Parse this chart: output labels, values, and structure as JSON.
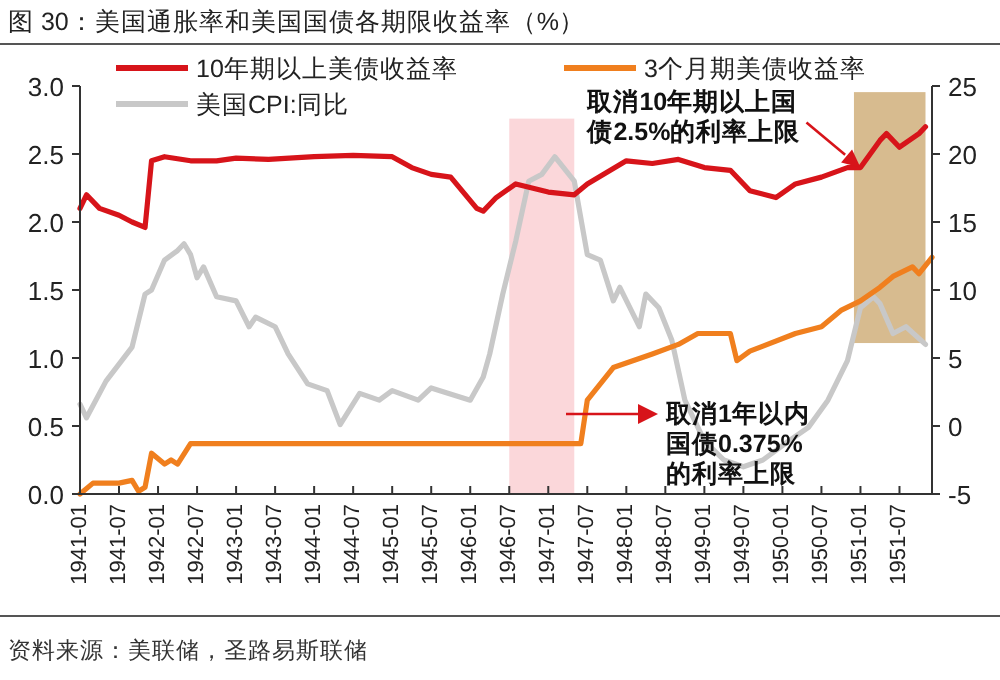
{
  "chart_data": {
    "type": "line",
    "title": "图 30：美国通胀率和美国国债各期限收益率（%）",
    "xlim": [
      "1941-01",
      "1951-12"
    ],
    "xticks": [
      "1941-01",
      "1941-07",
      "1942-01",
      "1942-07",
      "1943-01",
      "1943-07",
      "1944-01",
      "1944-07",
      "1945-01",
      "1945-07",
      "1946-01",
      "1946-07",
      "1947-01",
      "1947-07",
      "1948-01",
      "1948-07",
      "1949-01",
      "1949-07",
      "1950-01",
      "1950-07",
      "1951-01",
      "1951-07"
    ],
    "ylim": [
      0,
      3
    ],
    "yticks": [
      {
        "value": 0,
        "label": "0.0"
      },
      0.5,
      {
        "value": 1,
        "label": "1.0"
      },
      1.5,
      {
        "value": 2,
        "label": "2.0"
      },
      2.5,
      {
        "value": 3,
        "label": "3.0"
      }
    ],
    "y2lim": [
      -5,
      25
    ],
    "y2ticks": [
      -5,
      0,
      5,
      10,
      15,
      20,
      25
    ],
    "legend": "top",
    "grid": false,
    "series": [
      {
        "name": "美国CPI:同比",
        "color": "#c8c8c8",
        "axis": "y2",
        "x": [
          "1941-01",
          "1941-02",
          "1941-05",
          "1941-09",
          "1941-11",
          "1941-12",
          "1942-02",
          "1942-04",
          "1942-05",
          "1942-06",
          "1942-07",
          "1942-08",
          "1942-10",
          "1943-01",
          "1943-03",
          "1943-04",
          "1943-07",
          "1943-09",
          "1943-12",
          "1944-03",
          "1944-05",
          "1944-08",
          "1944-11",
          "1945-01",
          "1945-05",
          "1945-07",
          "1946-01",
          "1946-03",
          "1946-04",
          "1946-06",
          "1946-08",
          "1946-10",
          "1946-12",
          "1947-02",
          "1947-05",
          "1947-07",
          "1947-09",
          "1947-11",
          "1947-12",
          "1948-03",
          "1948-04",
          "1948-06",
          "1948-08",
          "1948-10",
          "1949-01",
          "1949-04",
          "1949-07",
          "1949-10",
          "1950-02",
          "1950-05",
          "1950-08",
          "1950-11",
          "1951-01",
          "1951-03",
          "1951-04",
          "1951-06",
          "1951-08",
          "1951-11"
        ],
        "values": [
          1.6,
          0.6,
          3.3,
          5.8,
          9.7,
          10.0,
          12.2,
          12.9,
          13.4,
          12.6,
          10.9,
          11.7,
          9.5,
          9.2,
          7.3,
          8.0,
          7.3,
          5.3,
          3.1,
          2.6,
          0.1,
          2.4,
          1.9,
          2.6,
          1.9,
          2.8,
          1.9,
          3.6,
          5.3,
          9.7,
          13.6,
          18.0,
          18.5,
          19.8,
          18.0,
          12.6,
          12.2,
          9.2,
          10.2,
          7.3,
          9.7,
          8.7,
          6.3,
          1.9,
          -1.1,
          -2.5,
          -3.0,
          -2.5,
          -1.1,
          -0.1,
          1.9,
          4.8,
          8.7,
          9.5,
          9.0,
          6.8,
          7.3,
          6.0
        ]
      },
      {
        "name": "10年期以上美债收益率",
        "color": "#d7141a",
        "x": [
          "1941-01",
          "1941-02",
          "1941-04",
          "1941-07",
          "1941-09",
          "1941-11",
          "1941-12",
          "1942-02",
          "1942-06",
          "1942-10",
          "1943-01",
          "1943-06",
          "1944-01",
          "1944-07",
          "1945-01",
          "1945-04",
          "1945-07",
          "1945-10",
          "1946-02",
          "1946-03",
          "1946-05",
          "1946-08",
          "1947-01",
          "1947-05",
          "1947-07",
          "1948-01",
          "1948-05",
          "1948-09",
          "1949-01",
          "1949-05",
          "1949-08",
          "1949-12",
          "1950-03",
          "1950-07",
          "1950-11",
          "1951-01",
          "1951-04",
          "1951-05",
          "1951-07",
          "1951-10",
          "1951-11"
        ],
        "values": [
          2.1,
          2.2,
          2.1,
          2.05,
          2.0,
          1.96,
          2.45,
          2.48,
          2.45,
          2.45,
          2.47,
          2.46,
          2.48,
          2.49,
          2.48,
          2.4,
          2.35,
          2.33,
          2.1,
          2.08,
          2.18,
          2.28,
          2.22,
          2.2,
          2.28,
          2.45,
          2.43,
          2.46,
          2.4,
          2.38,
          2.23,
          2.18,
          2.28,
          2.33,
          2.4,
          2.4,
          2.6,
          2.65,
          2.55,
          2.65,
          2.7
        ]
      },
      {
        "name": "3个月期美债收益率",
        "color": "#f07f1e",
        "x": [
          "1941-01",
          "1941-03",
          "1941-07",
          "1941-09",
          "1941-10",
          "1941-11",
          "1941-12",
          "1942-02",
          "1942-03",
          "1942-04",
          "1942-06",
          "1947-06",
          "1947-07",
          "1947-11",
          "1948-05",
          "1948-09",
          "1948-12",
          "1949-05",
          "1949-06",
          "1949-08",
          "1950-03",
          "1950-07",
          "1950-10",
          "1951-01",
          "1951-04",
          "1951-06",
          "1951-09",
          "1951-10",
          "1951-12"
        ],
        "values": [
          0.0,
          0.08,
          0.08,
          0.1,
          0.02,
          0.05,
          0.3,
          0.22,
          0.25,
          0.22,
          0.37,
          0.37,
          0.69,
          0.93,
          1.03,
          1.1,
          1.18,
          1.18,
          0.98,
          1.05,
          1.18,
          1.23,
          1.35,
          1.42,
          1.52,
          1.6,
          1.67,
          1.62,
          1.74
        ]
      }
    ],
    "bands": [
      {
        "axis": "x",
        "from": "1946-07",
        "to": "1947-05",
        "color": "#f9c9ce"
      },
      {
        "axis": "x",
        "from": "1950-12",
        "to": "1951-11",
        "color": "#c9a46a"
      }
    ],
    "annotations": [
      {
        "text": "取消10年期以上国债2.5%的利率上限",
        "x": "1951-01",
        "y": 2.4
      },
      "取消1年以内国债0.375%的利率上限",
      "资料来源：美联储，圣路易斯联储"
    ]
  }
}
